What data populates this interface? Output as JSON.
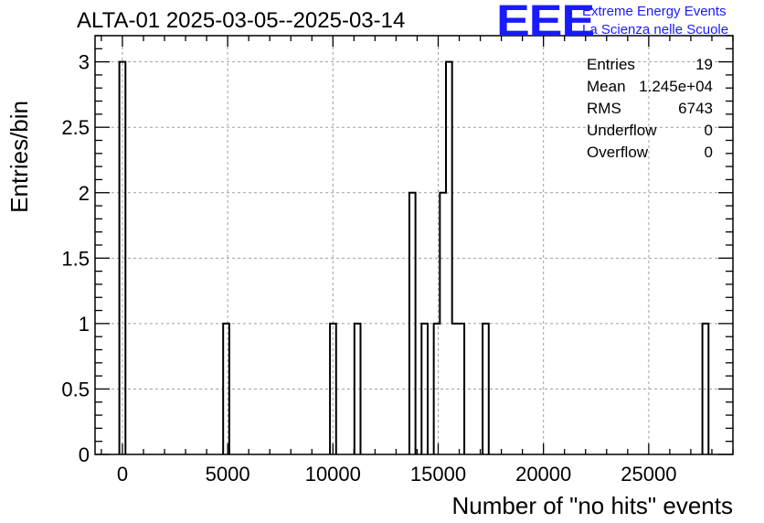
{
  "chart_data": {
    "type": "bar",
    "title": "ALTA-01 2025-03-05--2025-03-14",
    "xlabel": "Number of \"no hits\" events",
    "ylabel": "Entries/bin",
    "xlim": [
      -1300,
      29000
    ],
    "ylim": [
      0,
      3.2
    ],
    "xticks": [
      0,
      5000,
      10000,
      15000,
      20000,
      25000
    ],
    "xtick_labels": [
      "0",
      "5000",
      "10000",
      "15000",
      "20000",
      "25000"
    ],
    "yticks": [
      0,
      0.5,
      1,
      1.5,
      2,
      2.5,
      3
    ],
    "ytick_labels": [
      "0",
      "0.5",
      "1",
      "1.5",
      "2",
      "2.5",
      "3"
    ],
    "grid": true,
    "bin_width": 290,
    "bins": [
      {
        "x0": -145,
        "count": 3
      },
      {
        "x0": 4785,
        "count": 1
      },
      {
        "x0": 9860,
        "count": 1
      },
      {
        "x0": 11020,
        "count": 1
      },
      {
        "x0": 13630,
        "count": 2
      },
      {
        "x0": 14210,
        "count": 1
      },
      {
        "x0": 14790,
        "count": 1
      },
      {
        "x0": 15080,
        "count": 2
      },
      {
        "x0": 15370,
        "count": 3
      },
      {
        "x0": 15660,
        "count": 1
      },
      {
        "x0": 15950,
        "count": 1
      },
      {
        "x0": 17110,
        "count": 1
      },
      {
        "x0": 27550,
        "count": 1
      }
    ]
  },
  "stats_box": {
    "entries_label": "Entries",
    "entries_value": "19",
    "mean_label": "Mean",
    "mean_value": "1.245e+04",
    "rms_label": "RMS",
    "rms_value": "6743",
    "underflow_label": "Underflow",
    "underflow_value": "0",
    "overflow_label": "Overflow",
    "overflow_value": "0"
  },
  "logo": {
    "mark": "EEE",
    "line1": "Extreme Energy Events",
    "line2": "La Scienza nelle Scuole"
  },
  "colors": {
    "logo": "#1a1aff",
    "grid": "#a0a0a0",
    "line": "#000000"
  }
}
